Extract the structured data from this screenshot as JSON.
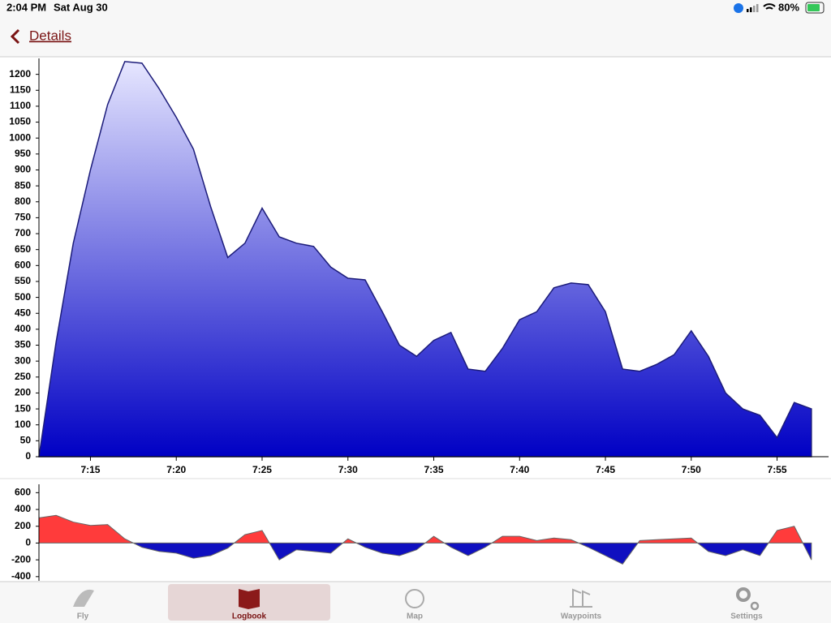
{
  "status_bar": {
    "time": "2:04 PM",
    "date": "Sat Aug 30",
    "battery": "80%"
  },
  "nav": {
    "back_label": "Details"
  },
  "chart_data": [
    {
      "type": "area",
      "x": [
        "7:12",
        "7:13",
        "7:14",
        "7:15",
        "7:16",
        "7:17",
        "7:18",
        "7:19",
        "7:20",
        "7:21",
        "7:22",
        "7:23",
        "7:24",
        "7:25",
        "7:26",
        "7:27",
        "7:28",
        "7:29",
        "7:30",
        "7:31",
        "7:32",
        "7:33",
        "7:34",
        "7:35",
        "7:36",
        "7:37",
        "7:38",
        "7:39",
        "7:40",
        "7:41",
        "7:42",
        "7:43",
        "7:44",
        "7:45",
        "7:46",
        "7:47",
        "7:48",
        "7:49",
        "7:50",
        "7:51",
        "7:52",
        "7:53",
        "7:54",
        "7:55",
        "7:56",
        "7:57"
      ],
      "values": [
        0,
        360,
        670,
        900,
        1105,
        1240,
        1235,
        1155,
        1065,
        965,
        785,
        625,
        670,
        780,
        690,
        670,
        660,
        595,
        560,
        555,
        455,
        350,
        315,
        365,
        390,
        275,
        268,
        340,
        430,
        455,
        530,
        545,
        540,
        455,
        275,
        268,
        290,
        320,
        395,
        315,
        200,
        150,
        130,
        60,
        170,
        150
      ],
      "xlim": [
        "7:12",
        "7:58"
      ],
      "xticks": [
        "7:15",
        "7:20",
        "7:25",
        "7:30",
        "7:35",
        "7:40",
        "7:45",
        "7:50",
        "7:55"
      ],
      "ylim": [
        0,
        1250
      ],
      "yticks": [
        0,
        50,
        100,
        150,
        200,
        250,
        300,
        350,
        400,
        450,
        500,
        550,
        600,
        650,
        700,
        750,
        800,
        850,
        900,
        950,
        1000,
        1050,
        1100,
        1150,
        1200
      ],
      "line_color": "#1c1c7a",
      "color_top": "#e6e6ff",
      "color_bottom": "#0000c4"
    },
    {
      "type": "vario",
      "x": [
        "7:12",
        "7:13",
        "7:14",
        "7:15",
        "7:16",
        "7:17",
        "7:18",
        "7:19",
        "7:20",
        "7:21",
        "7:22",
        "7:23",
        "7:24",
        "7:25",
        "7:26",
        "7:27",
        "7:28",
        "7:29",
        "7:30",
        "7:31",
        "7:32",
        "7:33",
        "7:34",
        "7:35",
        "7:36",
        "7:37",
        "7:38",
        "7:39",
        "7:40",
        "7:41",
        "7:42",
        "7:43",
        "7:44",
        "7:45",
        "7:46",
        "7:47",
        "7:48",
        "7:49",
        "7:50",
        "7:51",
        "7:52",
        "7:53",
        "7:54",
        "7:55",
        "7:56",
        "7:57"
      ],
      "values": [
        300,
        330,
        250,
        210,
        220,
        50,
        -50,
        -100,
        -120,
        -180,
        -150,
        -60,
        100,
        150,
        -200,
        -80,
        -100,
        -120,
        50,
        -50,
        -120,
        -150,
        -80,
        80,
        -50,
        -150,
        -50,
        80,
        80,
        30,
        60,
        40,
        -50,
        -150,
        -250,
        30,
        40,
        50,
        60,
        -100,
        -150,
        -80,
        -150,
        150,
        200,
        -200
      ],
      "xlim": [
        "7:12",
        "7:58"
      ],
      "ylim": [
        -450,
        700
      ],
      "yticks": [
        -400,
        -200,
        0,
        200,
        400,
        600
      ],
      "line_color": "#666666",
      "positive_color": "#ff3b3b",
      "negative_color": "#1010c0"
    }
  ],
  "tab_bar": {
    "tabs": [
      {
        "label": "Fly"
      },
      {
        "label": "Logbook"
      },
      {
        "label": "Map"
      },
      {
        "label": "Waypoints"
      },
      {
        "label": "Settings"
      }
    ],
    "selected_tab": 1
  }
}
